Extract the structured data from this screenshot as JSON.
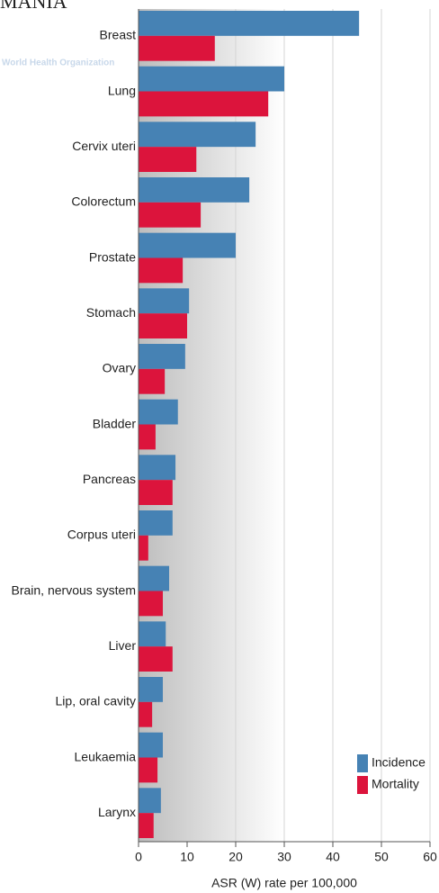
{
  "chart_data": {
    "type": "barh",
    "title": "MANIA",
    "watermark": "World Health Organization",
    "x_label": "ASR (W) rate per 100,000",
    "categories": [
      "Breast",
      "Lung",
      "Cervix uteri",
      "Colorectum",
      "Prostate",
      "Stomach",
      "Ovary",
      "Bladder",
      "Pancreas",
      "Corpus uteri",
      "Brain, nervous system",
      "Liver",
      "Lip, oral cavity",
      "Leukaemia",
      "Larynx"
    ],
    "series": [
      {
        "name": "Incidence",
        "color": "#4682b4",
        "values": [
          45.4,
          30.0,
          24.1,
          22.8,
          20.0,
          10.4,
          9.6,
          8.1,
          7.6,
          7.0,
          6.3,
          5.6,
          5.0,
          5.0,
          4.6
        ]
      },
      {
        "name": "Mortality",
        "color": "#dc143c",
        "values": [
          15.7,
          26.7,
          11.9,
          12.8,
          9.1,
          10.0,
          5.4,
          3.5,
          7.0,
          2.0,
          5.0,
          7.0,
          2.8,
          3.9,
          3.1
        ]
      }
    ],
    "xlim": [
      0,
      60
    ],
    "xticks": [
      0,
      10,
      20,
      30,
      40,
      50,
      60
    ],
    "grid": true,
    "legend": "bottom-right"
  }
}
